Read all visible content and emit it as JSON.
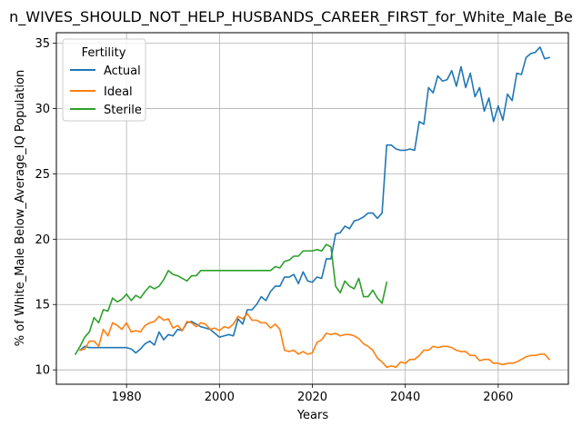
{
  "chart_data": {
    "type": "line",
    "title": "n_WIVES_SHOULD_NOT_HELP_HUSBANDS_CAREER_FIRST_for_White_Male_Be",
    "xlabel": "Years",
    "ylabel": "% of White_Male Below_Average_IQ Population",
    "xlim": [
      1964.9,
      2075.1
    ],
    "ylim": [
      8.9,
      35.8
    ],
    "x_ticks": [
      1980,
      2000,
      2020,
      2040,
      2060
    ],
    "y_ticks": [
      10,
      15,
      20,
      25,
      30,
      35
    ],
    "grid": true,
    "legend": {
      "title": "Fertility",
      "placement": "top-left"
    },
    "series": [
      {
        "name": "Actual",
        "color": "#1f77b4",
        "points": [
          [
            1970,
            11.5
          ],
          [
            1971,
            11.8
          ],
          [
            1972,
            11.7
          ],
          [
            1973,
            11.7
          ],
          [
            1974,
            11.7
          ],
          [
            1975,
            11.7
          ],
          [
            1976,
            11.7
          ],
          [
            1977,
            11.7
          ],
          [
            1978,
            11.7
          ],
          [
            1979,
            11.7
          ],
          [
            1980,
            11.7
          ],
          [
            1981,
            11.6
          ],
          [
            1982,
            11.3
          ],
          [
            1983,
            11.6
          ],
          [
            1984,
            12.0
          ],
          [
            1985,
            12.2
          ],
          [
            1986,
            11.9
          ],
          [
            1987,
            12.9
          ],
          [
            1988,
            12.3
          ],
          [
            1989,
            12.7
          ],
          [
            1990,
            12.6
          ],
          [
            1991,
            13.1
          ],
          [
            1992,
            13.0
          ],
          [
            1993,
            13.6
          ],
          [
            1994,
            13.7
          ],
          [
            1995,
            13.5
          ],
          [
            1996,
            13.3
          ],
          [
            1997,
            13.2
          ],
          [
            1998,
            13.1
          ],
          [
            1999,
            12.8
          ],
          [
            2000,
            12.5
          ],
          [
            2001,
            12.6
          ],
          [
            2002,
            12.7
          ],
          [
            2003,
            12.6
          ],
          [
            2004,
            13.9
          ],
          [
            2005,
            13.5
          ],
          [
            2006,
            14.6
          ],
          [
            2007,
            14.6
          ],
          [
            2008,
            15.0
          ],
          [
            2009,
            15.6
          ],
          [
            2010,
            15.3
          ],
          [
            2011,
            16.0
          ],
          [
            2012,
            16.4
          ],
          [
            2013,
            16.4
          ],
          [
            2014,
            17.1
          ],
          [
            2015,
            17.1
          ],
          [
            2016,
            17.3
          ],
          [
            2017,
            16.6
          ],
          [
            2018,
            17.5
          ],
          [
            2019,
            16.8
          ],
          [
            2020,
            16.7
          ],
          [
            2021,
            17.1
          ],
          [
            2022,
            17.0
          ],
          [
            2023,
            18.5
          ],
          [
            2024,
            18.5
          ],
          [
            2025,
            20.4
          ],
          [
            2026,
            20.5
          ],
          [
            2027,
            21.0
          ],
          [
            2028,
            20.8
          ],
          [
            2029,
            21.4
          ],
          [
            2030,
            21.5
          ],
          [
            2031,
            21.7
          ],
          [
            2032,
            22.0
          ],
          [
            2033,
            22.0
          ],
          [
            2034,
            21.6
          ],
          [
            2035,
            22.0
          ],
          [
            2036,
            27.2
          ],
          [
            2037,
            27.2
          ],
          [
            2038,
            26.9
          ],
          [
            2039,
            26.8
          ],
          [
            2040,
            26.8
          ],
          [
            2041,
            26.9
          ],
          [
            2042,
            26.8
          ],
          [
            2043,
            29.0
          ],
          [
            2044,
            28.8
          ],
          [
            2045,
            31.6
          ],
          [
            2046,
            31.2
          ],
          [
            2047,
            32.5
          ],
          [
            2048,
            32.1
          ],
          [
            2049,
            32.2
          ],
          [
            2050,
            32.9
          ],
          [
            2051,
            31.7
          ],
          [
            2052,
            33.2
          ],
          [
            2053,
            31.6
          ],
          [
            2054,
            32.7
          ],
          [
            2055,
            30.9
          ],
          [
            2056,
            31.6
          ],
          [
            2057,
            29.8
          ],
          [
            2058,
            30.8
          ],
          [
            2059,
            29.0
          ],
          [
            2060,
            30.2
          ],
          [
            2061,
            29.1
          ],
          [
            2062,
            31.1
          ],
          [
            2063,
            30.6
          ],
          [
            2064,
            32.7
          ],
          [
            2065,
            32.6
          ],
          [
            2066,
            33.9
          ],
          [
            2067,
            34.2
          ],
          [
            2068,
            34.3
          ],
          [
            2069,
            34.7
          ],
          [
            2070,
            33.8
          ],
          [
            2071,
            33.9
          ]
        ]
      },
      {
        "name": "Ideal",
        "color": "#ff7f0e",
        "points": [
          [
            1970,
            11.5
          ],
          [
            1971,
            11.6
          ],
          [
            1972,
            12.2
          ],
          [
            1973,
            12.2
          ],
          [
            1974,
            11.8
          ],
          [
            1975,
            13.1
          ],
          [
            1976,
            12.6
          ],
          [
            1977,
            13.6
          ],
          [
            1978,
            13.4
          ],
          [
            1979,
            13.1
          ],
          [
            1980,
            13.6
          ],
          [
            1981,
            12.9
          ],
          [
            1982,
            13.0
          ],
          [
            1983,
            12.9
          ],
          [
            1984,
            13.4
          ],
          [
            1985,
            13.6
          ],
          [
            1986,
            13.7
          ],
          [
            1987,
            14.1
          ],
          [
            1988,
            13.8
          ],
          [
            1989,
            13.9
          ],
          [
            1990,
            13.2
          ],
          [
            1991,
            13.4
          ],
          [
            1992,
            13.0
          ],
          [
            1993,
            13.7
          ],
          [
            1994,
            13.6
          ],
          [
            1995,
            13.3
          ],
          [
            1996,
            13.6
          ],
          [
            1997,
            13.5
          ],
          [
            1998,
            13.1
          ],
          [
            1999,
            13.2
          ],
          [
            2000,
            13.0
          ],
          [
            2001,
            13.3
          ],
          [
            2002,
            13.2
          ],
          [
            2003,
            13.5
          ],
          [
            2004,
            14.1
          ],
          [
            2005,
            13.9
          ],
          [
            2006,
            14.3
          ],
          [
            2007,
            13.8
          ],
          [
            2008,
            13.8
          ],
          [
            2009,
            13.6
          ],
          [
            2010,
            13.6
          ],
          [
            2011,
            13.2
          ],
          [
            2012,
            13.5
          ],
          [
            2013,
            13.1
          ],
          [
            2014,
            11.5
          ],
          [
            2015,
            11.4
          ],
          [
            2016,
            11.5
          ],
          [
            2017,
            11.2
          ],
          [
            2018,
            11.4
          ],
          [
            2019,
            11.2
          ],
          [
            2020,
            11.3
          ],
          [
            2021,
            12.1
          ],
          [
            2022,
            12.3
          ],
          [
            2023,
            12.8
          ],
          [
            2024,
            12.7
          ],
          [
            2025,
            12.8
          ],
          [
            2026,
            12.6
          ],
          [
            2027,
            12.7
          ],
          [
            2028,
            12.7
          ],
          [
            2029,
            12.6
          ],
          [
            2030,
            12.4
          ],
          [
            2031,
            12.0
          ],
          [
            2032,
            11.8
          ],
          [
            2033,
            11.5
          ],
          [
            2034,
            10.9
          ],
          [
            2035,
            10.6
          ],
          [
            2036,
            10.2
          ],
          [
            2037,
            10.3
          ],
          [
            2038,
            10.2
          ],
          [
            2039,
            10.6
          ],
          [
            2040,
            10.5
          ],
          [
            2041,
            10.8
          ],
          [
            2042,
            10.8
          ],
          [
            2043,
            11.1
          ],
          [
            2044,
            11.5
          ],
          [
            2045,
            11.5
          ],
          [
            2046,
            11.8
          ],
          [
            2047,
            11.7
          ],
          [
            2048,
            11.8
          ],
          [
            2049,
            11.8
          ],
          [
            2050,
            11.7
          ],
          [
            2051,
            11.5
          ],
          [
            2052,
            11.4
          ],
          [
            2053,
            11.4
          ],
          [
            2054,
            11.1
          ],
          [
            2055,
            11.1
          ],
          [
            2056,
            10.7
          ],
          [
            2057,
            10.8
          ],
          [
            2058,
            10.8
          ],
          [
            2059,
            10.5
          ],
          [
            2060,
            10.5
          ],
          [
            2061,
            10.4
          ],
          [
            2062,
            10.5
          ],
          [
            2063,
            10.5
          ],
          [
            2064,
            10.6
          ],
          [
            2065,
            10.8
          ],
          [
            2066,
            11.0
          ],
          [
            2067,
            11.1
          ],
          [
            2068,
            11.1
          ],
          [
            2069,
            11.2
          ],
          [
            2070,
            11.2
          ],
          [
            2071,
            10.8
          ]
        ]
      },
      {
        "name": "Sterile",
        "color": "#2ca02c",
        "points": [
          [
            1969,
            11.2
          ],
          [
            1970,
            11.8
          ],
          [
            1971,
            12.5
          ],
          [
            1972,
            12.9
          ],
          [
            1973,
            14.0
          ],
          [
            1974,
            13.6
          ],
          [
            1975,
            14.6
          ],
          [
            1976,
            14.5
          ],
          [
            1977,
            15.5
          ],
          [
            1978,
            15.2
          ],
          [
            1979,
            15.4
          ],
          [
            1980,
            15.8
          ],
          [
            1981,
            15.3
          ],
          [
            1982,
            15.7
          ],
          [
            1983,
            15.5
          ],
          [
            1984,
            16.0
          ],
          [
            1985,
            16.4
          ],
          [
            1986,
            16.2
          ],
          [
            1987,
            16.4
          ],
          [
            1988,
            16.9
          ],
          [
            1989,
            17.6
          ],
          [
            1990,
            17.3
          ],
          [
            1991,
            17.2
          ],
          [
            1992,
            17.0
          ],
          [
            1993,
            16.8
          ],
          [
            1994,
            17.2
          ],
          [
            1995,
            17.2
          ],
          [
            1996,
            17.6
          ],
          [
            1997,
            17.6
          ],
          [
            1998,
            17.6
          ],
          [
            1999,
            17.6
          ],
          [
            2000,
            17.6
          ],
          [
            2001,
            17.6
          ],
          [
            2002,
            17.6
          ],
          [
            2003,
            17.6
          ],
          [
            2004,
            17.6
          ],
          [
            2005,
            17.6
          ],
          [
            2006,
            17.6
          ],
          [
            2007,
            17.6
          ],
          [
            2008,
            17.6
          ],
          [
            2009,
            17.6
          ],
          [
            2010,
            17.6
          ],
          [
            2011,
            17.6
          ],
          [
            2012,
            17.9
          ],
          [
            2013,
            17.8
          ],
          [
            2014,
            18.3
          ],
          [
            2015,
            18.4
          ],
          [
            2016,
            18.7
          ],
          [
            2017,
            18.7
          ],
          [
            2018,
            19.1
          ],
          [
            2019,
            19.1
          ],
          [
            2020,
            19.1
          ],
          [
            2021,
            19.2
          ],
          [
            2022,
            19.1
          ],
          [
            2023,
            19.6
          ],
          [
            2024,
            19.4
          ],
          [
            2025,
            16.4
          ],
          [
            2026,
            15.9
          ],
          [
            2027,
            16.8
          ],
          [
            2028,
            16.4
          ],
          [
            2029,
            16.2
          ],
          [
            2030,
            17.0
          ],
          [
            2031,
            15.6
          ],
          [
            2032,
            15.6
          ],
          [
            2033,
            16.1
          ],
          [
            2034,
            15.5
          ],
          [
            2035,
            15.1
          ],
          [
            2036,
            16.7
          ]
        ]
      }
    ]
  }
}
